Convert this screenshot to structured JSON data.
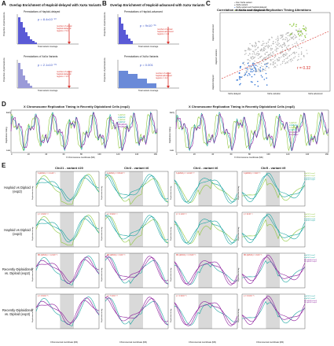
{
  "figure": {
    "panel_A": {
      "letter": "A",
      "title": "Overlap Enrichment of Haploid-delayed with XaXa Variants",
      "top": {
        "subtitle": "Permutations of Haploid-delayed",
        "p": "p = 8.4x10⁻¹⁰",
        "note": "number of actual haploid-delayed regions = 5.4",
        "xlabel": "Total variant coverage",
        "ylabel": "Proportion of permutations"
      },
      "bottom": {
        "subtitle": "Permutations of XaXa Variants",
        "p": "p = 2.1x10⁻⁰⁹",
        "note": "number of actual haploid-delayed regions = 3.4",
        "xlabel": "Total variant coverage",
        "ylabel": "Proportion of permutations"
      }
    },
    "panel_B": {
      "letter": "B",
      "title": "Overlap Enrichment of Haploid-advanced with XaXa Variants",
      "top": {
        "subtitle": "Permutations of Haploid-advanced",
        "p": "p = 9x10⁻⁰⁵",
        "note": "number of actual haploid-advanced regions = 4.4",
        "xlabel": "Total variant coverage",
        "ylabel": "Proportion of permutations"
      },
      "bottom": {
        "subtitle": "Permutations of XaXa Variants",
        "p": "p = 0.001",
        "note": "number of actual haploid-advanced regions = 4.4",
        "xlabel": "Total variant coverage",
        "ylabel": "Proportion of permutations"
      }
    },
    "panel_C": {
      "letter": "C",
      "title": "Correlation of XaXa and Haploid Replication Timing Alterations",
      "legend": [
        "Non XaXa variant",
        "XaXa variant",
        "XaXa variant and haploid-delayed",
        "XaXa variant and haploid-advanced"
      ],
      "r": "r = 0.32",
      "xlabel": "XaXa variation",
      "x_left": "XaXa delayed",
      "x_right": "XaXa advanced",
      "ylabel": "Haploid variation",
      "y_top": "Haploid advanced",
      "y_bottom": "Haploid delayed"
    },
    "panel_D": {
      "letter": "D",
      "plots": [
        {
          "title": "X Chromosome Replication Timing in Recently Diploidized Cells (exp2)",
          "legend": [
            "h-pES10",
            "d-pES10",
            "h-pES12",
            "d-pES12",
            "RD-pES10",
            "RD-pES12"
          ]
        },
        {
          "title": "X Chromosome Replication Timing in Recently Diploidized Cells (exp3)",
          "legend": [
            "h-pES10",
            "d-pES10",
            "h-pES12",
            "d-pES12",
            "RD-pES10",
            "RD-pES12"
          ]
        }
      ],
      "ylabel": "Replication timing",
      "y_top": "Early",
      "y_bottom": "Late",
      "xlabel": "X Chromosome coordinate (Mb)",
      "xticks": [
        "0",
        "20",
        "40",
        "60",
        "80",
        "100",
        "120",
        "140",
        "160"
      ]
    },
    "panel_E": {
      "letter": "E",
      "columns": [
        "Chr21 - variant #20",
        "Chr3 - variant #6",
        "Chr4 - variant #6",
        "Chr5 - variant #9"
      ],
      "rows": [
        {
          "label": "Haploid vs Diploid (exp2)",
          "legend": [
            "h-pES10-exp2",
            "h-pES12-exp2",
            "d-pES10-exp2",
            "d-pES12-exp2"
          ]
        },
        {
          "label": "Haploid vs Diploid (exp3)",
          "legend": [
            "h-pES10-exp3",
            "h-pES12-exp3",
            "d-pES10-exp3",
            "d-pES12-exp3"
          ]
        },
        {
          "label": "Recently-Diploidized vs. Diploid (exp2)",
          "legend": [
            "d-pES10-exp2",
            "d-pES12-exp2",
            "RD-pES10-exp2",
            "RD-pES12-exp2"
          ]
        },
        {
          "label": "Recently-Diploidized vs. Diploid (exp3)",
          "legend": [
            "d-pES10-exp3",
            "d-pES12-exp3",
            "RD-pES10-exp3",
            "RD-pES12-exp3"
          ]
        }
      ],
      "stats": [
        [
          "h-pES10 p = 4.1x10⁻¹⁷",
          "h-pES10 p = 6.8x10⁻⁰⁷",
          "h-pES10 p = 1.2x10⁻¹⁰",
          "h-pES10 p = 3x10⁻⁰⁶"
        ],
        [
          "p = 1.6x10⁻¹²",
          "p = 4.9x10⁻¹¹",
          "p = 1.1x10⁻²¹",
          "p = 4x10⁻¹¹"
        ],
        [
          "RD-pES10 p = 1.2x10⁻⁰⁶",
          "RD-pES10 p = 2x10⁻⁰⁶",
          "RD-pES10 p = 2.3x10⁻⁰⁸",
          "RD-pES10 p = 2x10⁻⁰⁵"
        ],
        [
          "p = 4.6x10⁻⁰⁸",
          "p = 7.4x10⁻¹⁰",
          "p = 1.9x10⁻⁰⁸",
          "p = 3.4x10⁻⁰⁶"
        ]
      ],
      "ylabel": "Replication timing",
      "xlabel": "Chromosomal coordinate (Mb)"
    },
    "colors": {
      "haploid": "#8fc73e",
      "diploid": "#1aa5a0",
      "recent": "#8a1a9b",
      "highlight_blue": "#3a7ad6",
      "red": "#d8312a",
      "gray": "#999999"
    }
  }
}
